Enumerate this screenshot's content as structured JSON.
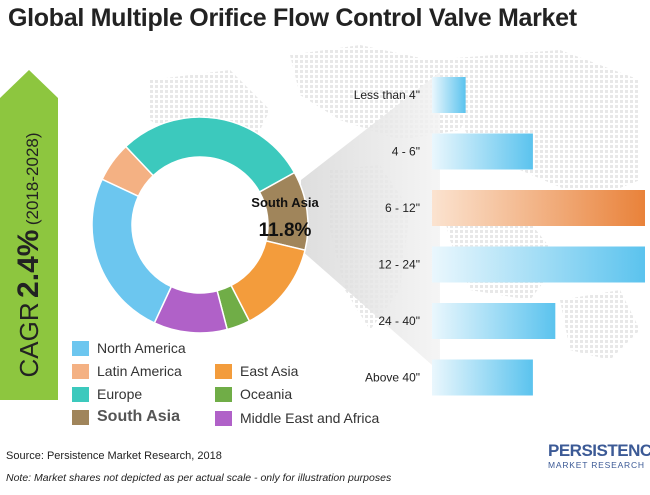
{
  "title": "Global Multiple Orifice Flow Control Valve Market",
  "cagr": {
    "label": "CAGR",
    "value": "2.4%",
    "period": "(2018-2028)",
    "color": "#8dc63f"
  },
  "chart_data": [
    {
      "type": "pie",
      "variant": "donut",
      "categories": [
        "North America",
        "Latin America",
        "Europe",
        "South Asia",
        "East Asia",
        "Oceania",
        "Middle East and Africa"
      ],
      "values": [
        25.0,
        6.0,
        29.0,
        11.8,
        13.7,
        3.5,
        11.0
      ],
      "colors": [
        "#6cc6ef",
        "#f4b183",
        "#3cc9bd",
        "#a0855b",
        "#f39c3c",
        "#70ad47",
        "#b061c8"
      ],
      "highlight": {
        "category": "South Asia",
        "label": "South Asia",
        "value_label": "11.8%"
      },
      "legend": "bottom"
    },
    {
      "type": "bar",
      "orientation": "horizontal",
      "categories": [
        "Less than 4\"",
        "4 - 6\"",
        "6 - 12\"",
        "12 - 24\"",
        "24 - 40\"",
        "Above 40\""
      ],
      "values": [
        3,
        9,
        19,
        19,
        11,
        9
      ],
      "highlight": "6 - 12\"",
      "colors": {
        "default": "#5bc3ee",
        "highlight": "#e9823a"
      }
    }
  ],
  "legend_items": [
    {
      "label": "North America",
      "color": "#6cc6ef"
    },
    {
      "label": "Latin America",
      "color": "#f4b183"
    },
    {
      "label": "Europe",
      "color": "#3cc9bd"
    },
    {
      "label": "South Asia",
      "color": "#a0855b"
    },
    {
      "label": "East Asia",
      "color": "#f39c3c"
    },
    {
      "label": "Oceania",
      "color": "#70ad47"
    },
    {
      "label": "Middle East and Africa",
      "color": "#b061c8"
    }
  ],
  "source": "Source: Persistence Market Research, 2018",
  "note": "Note:  Market shares not depicted as per actual scale - only for illustration purposes",
  "logo": {
    "main": "PERSISTENCE",
    "sub": "MARKET RESEARCH"
  }
}
